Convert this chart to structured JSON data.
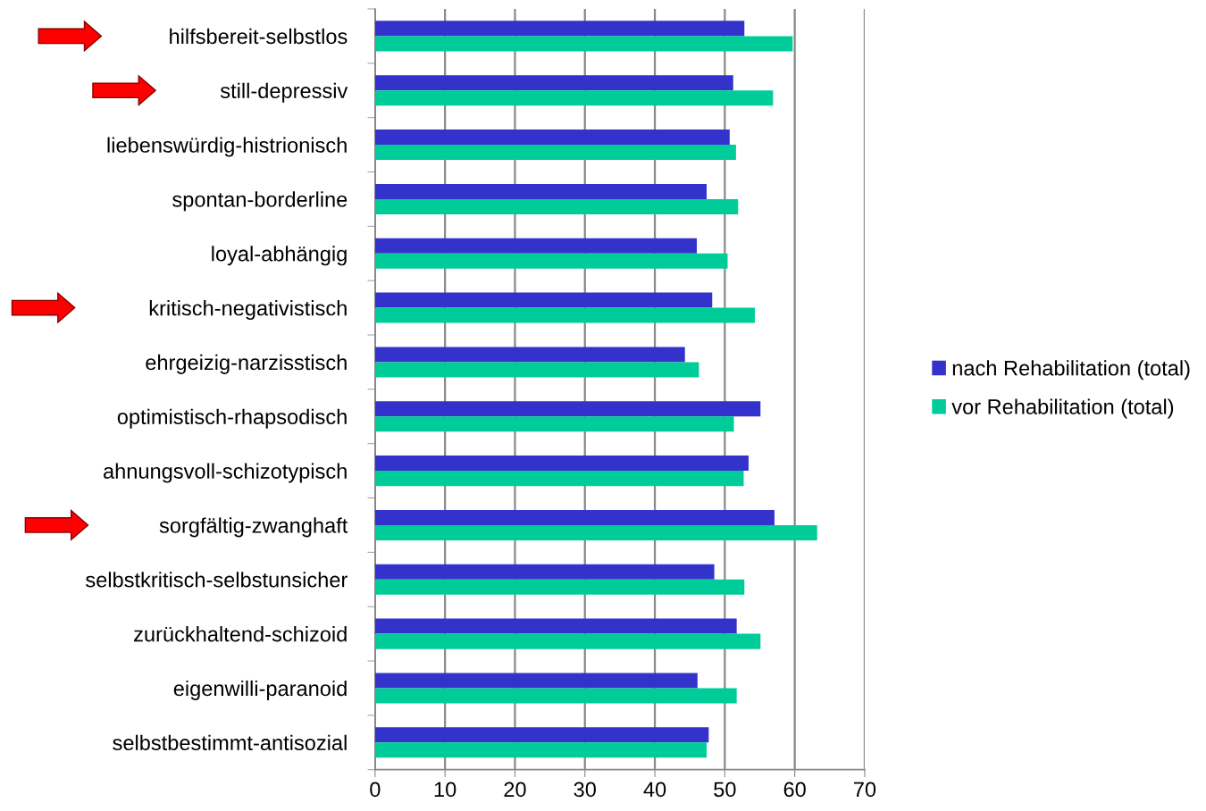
{
  "chart_data": {
    "type": "bar",
    "orientation": "horizontal",
    "categories": [
      "hilfsbereit-selbstlos",
      "still-depressiv",
      "liebenswürdig-histrionisch",
      "spontan-borderline",
      "loyal-abhängig",
      "kritisch-negativistisch",
      "ehrgeizig-narzisstisch",
      "optimistisch-rhapsodisch",
      "ahnungsvoll-schizotypisch",
      "sorgfältig-zwanghaft",
      "selbstkritisch-selbstunsicher",
      "zurückhaltend-schizoid",
      "eigenwilli-paranoid",
      "selbstbestimmt-antisozial"
    ],
    "series": [
      {
        "name": "nach Rehabilitation (total)",
        "color": "#3333cc",
        "values": [
          52.8,
          51.2,
          50.7,
          47.4,
          46.0,
          48.2,
          44.3,
          55.1,
          53.4,
          57.1,
          48.5,
          51.7,
          46.1,
          47.7
        ]
      },
      {
        "name": "vor Rehabilitation (total)",
        "color": "#00cc99",
        "values": [
          59.7,
          56.9,
          51.6,
          51.9,
          50.4,
          54.3,
          46.3,
          51.3,
          52.7,
          63.2,
          52.8,
          55.1,
          51.7,
          47.4
        ]
      }
    ],
    "xlim": [
      0,
      70
    ],
    "xticks": [
      0,
      10,
      20,
      30,
      40,
      50,
      60,
      70
    ],
    "grid": "x",
    "legend": "right"
  }
}
